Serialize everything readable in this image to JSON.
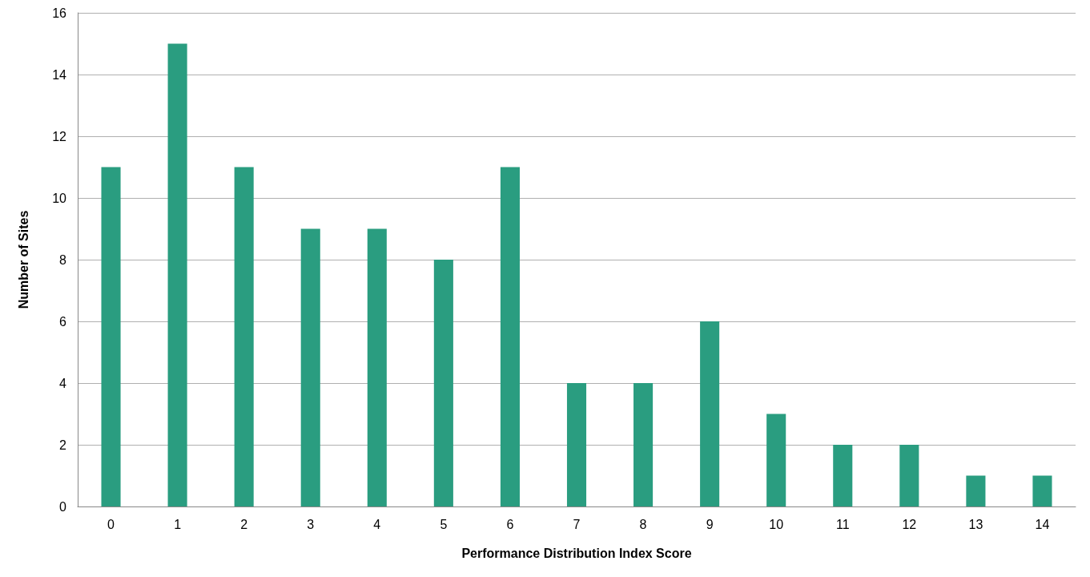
{
  "chart_data": {
    "type": "bar",
    "xlabel": "Performance Distribution Index Score",
    "ylabel": "Number of Sites",
    "categories": [
      "0",
      "1",
      "2",
      "3",
      "4",
      "5",
      "6",
      "7",
      "8",
      "9",
      "10",
      "11",
      "12",
      "13",
      "14"
    ],
    "values": [
      11,
      15,
      11,
      9,
      9,
      8,
      11,
      4,
      4,
      6,
      3,
      2,
      2,
      1,
      1
    ],
    "color": "#2a9d80",
    "ylim": [
      0,
      16
    ],
    "yticks": [
      0,
      2,
      4,
      6,
      8,
      10,
      12,
      14,
      16
    ],
    "grid": "y"
  }
}
